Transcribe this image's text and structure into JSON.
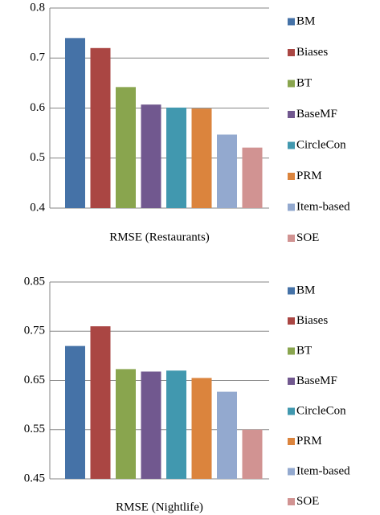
{
  "chart_data": [
    {
      "type": "bar",
      "xlabel": "RMSE (Restaurants)",
      "categories": [
        null
      ],
      "ylim": [
        0.4,
        0.8
      ],
      "yticks": [
        0.4,
        0.5,
        0.6,
        0.7,
        0.8
      ],
      "grid": true,
      "series": [
        {
          "name": "BM",
          "color": "#4572a7",
          "values": [
            0.74
          ]
        },
        {
          "name": "Biases",
          "color": "#aa4643",
          "values": [
            0.72
          ]
        },
        {
          "name": "BT",
          "color": "#89a54e",
          "values": [
            0.642
          ]
        },
        {
          "name": "BaseMF",
          "color": "#71588f",
          "values": [
            0.607
          ]
        },
        {
          "name": "CircleCon",
          "color": "#4198af",
          "values": [
            0.601
          ]
        },
        {
          "name": "PRM",
          "color": "#db843d",
          "values": [
            0.599
          ]
        },
        {
          "name": "Item-based",
          "color": "#93a9cf",
          "values": [
            0.547
          ]
        },
        {
          "name": "SOE",
          "color": "#d19392",
          "values": [
            0.521
          ]
        }
      ]
    },
    {
      "type": "bar",
      "xlabel": "RMSE (Nightlife)",
      "categories": [
        null
      ],
      "ylim": [
        0.45,
        0.85
      ],
      "yticks": [
        0.45,
        0.55,
        0.65,
        0.75,
        0.85
      ],
      "grid": true,
      "series": [
        {
          "name": "BM",
          "color": "#4572a7",
          "values": [
            0.72
          ]
        },
        {
          "name": "Biases",
          "color": "#aa4643",
          "values": [
            0.76
          ]
        },
        {
          "name": "BT",
          "color": "#89a54e",
          "values": [
            0.673
          ]
        },
        {
          "name": "BaseMF",
          "color": "#71588f",
          "values": [
            0.668
          ]
        },
        {
          "name": "CircleCon",
          "color": "#4198af",
          "values": [
            0.67
          ]
        },
        {
          "name": "PRM",
          "color": "#db843d",
          "values": [
            0.655
          ]
        },
        {
          "name": "Item-based",
          "color": "#93a9cf",
          "values": [
            0.627
          ]
        },
        {
          "name": "SOE",
          "color": "#d19392",
          "values": [
            0.55
          ]
        }
      ]
    }
  ]
}
